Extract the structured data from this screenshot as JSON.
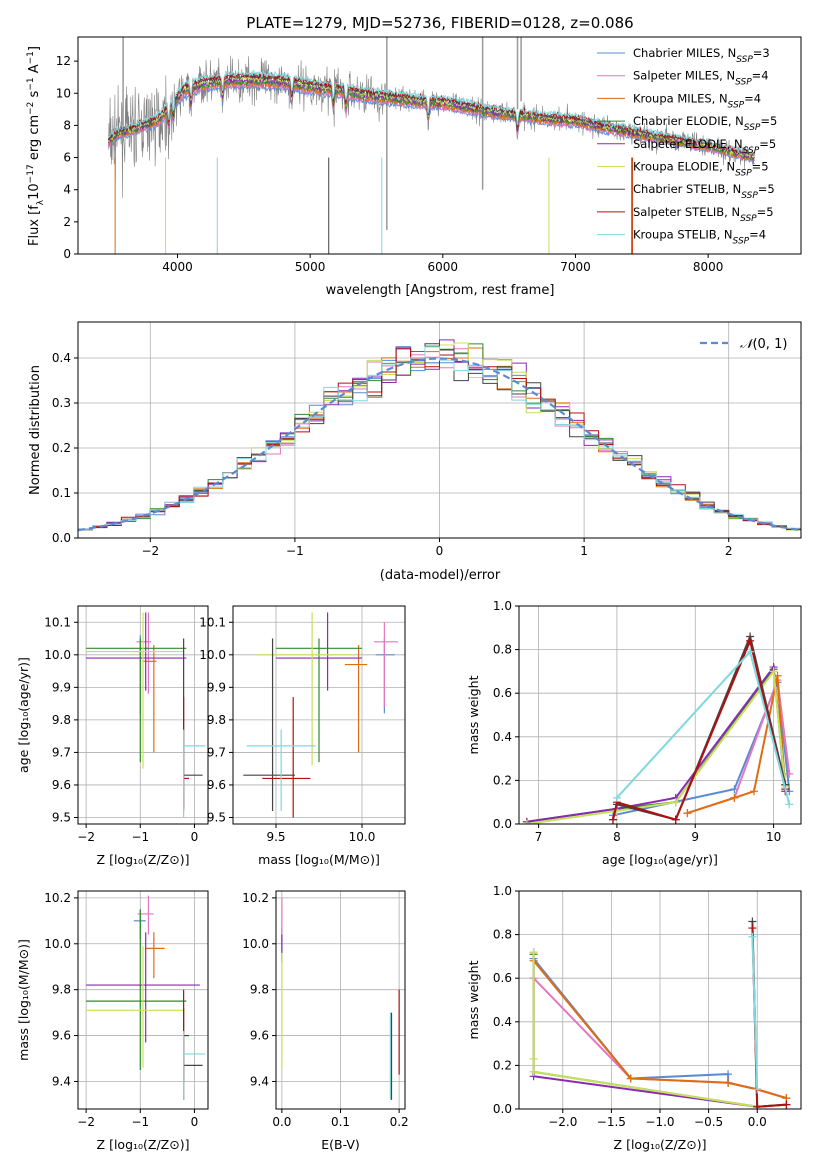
{
  "figure_title": "PLATE=1279, MJD=52736, FIBERID=0128, z=0.086",
  "models": [
    {
      "name": "Chabrier MILES",
      "nssp": "3",
      "color": "#5b8bd0"
    },
    {
      "name": "Salpeter MILES",
      "nssp": "4",
      "color": "#e377c2"
    },
    {
      "name": "Kroupa MILES",
      "nssp": "4",
      "color": "#e06c10"
    },
    {
      "name": "Chabrier ELODIE",
      "nssp": "5",
      "color": "#2f8a2f"
    },
    {
      "name": "Salpeter ELODIE",
      "nssp": "5",
      "color": "#8a2ab3"
    },
    {
      "name": "Kroupa ELODIE",
      "nssp": "5",
      "color": "#c8e05a"
    },
    {
      "name": "Chabrier STELIB",
      "nssp": "5",
      "color": "#444444"
    },
    {
      "name": "Salpeter STELIB",
      "nssp": "5",
      "color": "#b01010"
    },
    {
      "name": "Kroupa STELIB",
      "nssp": "4",
      "color": "#7fd8e0"
    }
  ],
  "chart_data": [
    {
      "id": "spectrum",
      "type": "line",
      "title": "PLATE=1279, MJD=52736, FIBERID=0128, z=0.086",
      "xlabel": "wavelength [Angstrom, rest frame]",
      "ylabel": "Flux [f_λ 10^-17 erg cm^-2 s^-1 A^-1]",
      "xlim": [
        3250,
        8700
      ],
      "ylim": [
        0,
        13.5
      ],
      "xticks": [
        4000,
        5000,
        6000,
        7000,
        8000
      ],
      "yticks": [
        0,
        2,
        4,
        6,
        8,
        10,
        12
      ],
      "grid": false,
      "legend": "top-right",
      "data_color": "#808080",
      "continuum": {
        "x": [
          3480,
          3550,
          3650,
          3750,
          3850,
          3950,
          4050,
          4200,
          4400,
          4600,
          4800,
          5000,
          5200,
          5400,
          5600,
          5800,
          6000,
          6200,
          6400,
          6600,
          6800,
          7000,
          7200,
          7400,
          7600,
          7800,
          8000,
          8200,
          8350
        ],
        "y": [
          7.0,
          7.5,
          7.7,
          8.0,
          8.3,
          9.2,
          10.2,
          10.6,
          10.8,
          10.8,
          10.7,
          10.4,
          10.2,
          9.9,
          9.7,
          9.5,
          9.4,
          9.1,
          8.8,
          8.6,
          8.4,
          8.3,
          7.9,
          7.6,
          7.3,
          7.0,
          6.7,
          6.3,
          6.0
        ]
      },
      "absorption_lines": [
        3934,
        3969,
        4102,
        4340,
        4861,
        5175,
        5270,
        5890,
        6563
      ]
    },
    {
      "id": "residuals",
      "type": "histogram",
      "xlabel": "(data-model)/error",
      "ylabel": "Normed distribution",
      "xlim": [
        -2.5,
        2.5
      ],
      "ylim": [
        0,
        0.48
      ],
      "xticks": [
        -2,
        -1,
        0,
        1,
        2
      ],
      "yticks": [
        0.0,
        0.1,
        0.2,
        0.3,
        0.4
      ],
      "grid": true,
      "legend": "top-right",
      "legend_label": "N(0,1)",
      "reference_curve": "gaussian, mean 0, sigma 1",
      "bin_width": 0.1
    },
    {
      "id": "age-vs-Z",
      "type": "errorbar",
      "xlabel": "Z [log10(Z/Z⊙)]",
      "ylabel": "age [log10(age/yr)]",
      "xlim": [
        -2.15,
        0.25
      ],
      "ylim": [
        9.48,
        10.15
      ],
      "xticks": [
        -2,
        -1,
        0
      ],
      "yticks": [
        9.5,
        9.6,
        9.7,
        9.8,
        9.9,
        10.0,
        10.1
      ],
      "grid": true,
      "points": [
        {
          "x": -1.0,
          "xerr": [
            0.1,
            0.1
          ],
          "y": 10.01,
          "yerr": [
            0.19,
            0.05
          ],
          "color": "#5b8bd0"
        },
        {
          "x": -0.85,
          "xerr": [
            0.22,
            0.05
          ],
          "y": 10.04,
          "yerr": [
            0.16,
            0.09
          ],
          "color": "#e377c2"
        },
        {
          "x": -0.75,
          "xerr": [
            0.2,
            0.05
          ],
          "y": 9.98,
          "yerr": [
            0.28,
            0.05
          ],
          "color": "#e06c10"
        },
        {
          "x": -1.0,
          "xerr": [
            1.0,
            0.85
          ],
          "y": 10.02,
          "yerr": [
            0.35,
            0.03
          ],
          "color": "#2f8a2f"
        },
        {
          "x": -0.9,
          "xerr": [
            1.1,
            0.75
          ],
          "y": 9.99,
          "yerr": [
            0.1,
            0.14
          ],
          "color": "#8a2ab3"
        },
        {
          "x": -0.95,
          "xerr": [
            1.05,
            0.75
          ],
          "y": 10.01,
          "yerr": [
            0.36,
            0.12
          ],
          "color": "#c8e05a"
        },
        {
          "x": -0.2,
          "xerr": [
            0.0,
            0.35
          ],
          "y": 9.63,
          "yerr": [
            0.1,
            0.42
          ],
          "color": "#444444"
        },
        {
          "x": -0.2,
          "xerr": [
            0.0,
            0.1
          ],
          "y": 9.62,
          "yerr": [
            0.1,
            0.25
          ],
          "color": "#b01010"
        },
        {
          "x": -0.2,
          "xerr": [
            0.0,
            0.4
          ],
          "y": 9.72,
          "yerr": [
            0.22,
            0.05
          ],
          "color": "#7fd8e0"
        }
      ]
    },
    {
      "id": "age-vs-mass",
      "type": "errorbar",
      "xlabel": "mass [log10(M/M⊙)]",
      "ylabel": "",
      "xlim": [
        9.25,
        10.25
      ],
      "ylim": [
        9.48,
        10.15
      ],
      "xticks": [
        9.5,
        10.0
      ],
      "yticks": [
        9.5,
        9.6,
        9.7,
        9.8,
        9.9,
        10.0,
        10.1
      ],
      "grid": true,
      "points": [
        {
          "x": 10.13,
          "xerr": [
            0.05,
            0.06
          ],
          "y": 10.0,
          "yerr": [
            0.18,
            0.05
          ],
          "color": "#5b8bd0"
        },
        {
          "x": 10.13,
          "xerr": [
            0.06,
            0.08
          ],
          "y": 10.04,
          "yerr": [
            0.2,
            0.06
          ],
          "color": "#e377c2"
        },
        {
          "x": 9.98,
          "xerr": [
            0.08,
            0.05
          ],
          "y": 9.97,
          "yerr": [
            0.27,
            0.06
          ],
          "color": "#e06c10"
        },
        {
          "x": 9.75,
          "xerr": [
            0.25,
            0.25
          ],
          "y": 10.02,
          "yerr": [
            0.35,
            0.03
          ],
          "color": "#2f8a2f"
        },
        {
          "x": 9.8,
          "xerr": [
            0.3,
            0.2
          ],
          "y": 9.99,
          "yerr": [
            0.1,
            0.14
          ],
          "color": "#8a2ab3"
        },
        {
          "x": 9.71,
          "xerr": [
            0.32,
            0.25
          ],
          "y": 10.0,
          "yerr": [
            0.34,
            0.13
          ],
          "color": "#c8e05a"
        },
        {
          "x": 9.48,
          "xerr": [
            0.17,
            0.13
          ],
          "y": 9.63,
          "yerr": [
            0.11,
            0.42
          ],
          "color": "#444444"
        },
        {
          "x": 9.6,
          "xerr": [
            0.18,
            0.1
          ],
          "y": 9.62,
          "yerr": [
            0.12,
            0.25
          ],
          "color": "#b01010"
        },
        {
          "x": 9.53,
          "xerr": [
            0.2,
            0.2
          ],
          "y": 9.72,
          "yerr": [
            0.2,
            0.05
          ],
          "color": "#7fd8e0"
        }
      ]
    },
    {
      "id": "massweight-vs-age",
      "type": "line",
      "xlabel": "age [log10(age/yr)]",
      "ylabel": "mass weight",
      "xlim": [
        6.75,
        10.35
      ],
      "ylim": [
        0,
        1.0
      ],
      "xticks": [
        7,
        8,
        9,
        10
      ],
      "yticks": [
        0.0,
        0.2,
        0.4,
        0.6,
        0.8,
        1.0
      ],
      "grid": true,
      "series": [
        {
          "color": "#5b8bd0",
          "x": [
            7.95,
            9.5,
            10.05,
            10.2
          ],
          "y": [
            0.04,
            0.16,
            0.65,
            0.15
          ]
        },
        {
          "color": "#e377c2",
          "x": [
            8.9,
            9.5,
            10.05,
            10.2
          ],
          "y": [
            0.05,
            0.12,
            0.66,
            0.23
          ]
        },
        {
          "color": "#e06c10",
          "x": [
            8.9,
            9.5,
            9.75,
            10.05,
            10.15
          ],
          "y": [
            0.05,
            0.12,
            0.15,
            0.68,
            0.15
          ]
        },
        {
          "color": "#2f8a2f",
          "x": [
            6.85,
            8.0,
            8.75,
            10.0,
            10.15
          ],
          "y": [
            0.01,
            0.07,
            0.1,
            0.71,
            0.18
          ]
        },
        {
          "color": "#8a2ab3",
          "x": [
            6.85,
            8.0,
            8.75,
            10.0,
            10.15
          ],
          "y": [
            0.01,
            0.07,
            0.12,
            0.72,
            0.15
          ]
        },
        {
          "color": "#c8e05a",
          "x": [
            6.85,
            8.0,
            8.75,
            10.0,
            10.15
          ],
          "y": [
            0.0,
            0.06,
            0.1,
            0.7,
            0.17
          ]
        },
        {
          "color": "#444444",
          "x": [
            7.95,
            8.0,
            8.75,
            9.7,
            10.15
          ],
          "y": [
            0.02,
            0.09,
            0.02,
            0.86,
            0.18
          ]
        },
        {
          "color": "#b01010",
          "x": [
            7.95,
            8.0,
            8.75,
            9.7,
            10.15
          ],
          "y": [
            0.02,
            0.1,
            0.02,
            0.84,
            0.16
          ]
        },
        {
          "color": "#7fd8e0",
          "x": [
            8.0,
            9.7,
            10.2
          ],
          "y": [
            0.12,
            0.79,
            0.09
          ]
        }
      ]
    },
    {
      "id": "mass-vs-Z",
      "type": "errorbar",
      "xlabel": "Z [log10(Z/Z⊙)]",
      "ylabel": "mass [log10(M/M⊙)]",
      "xlim": [
        -2.15,
        0.25
      ],
      "ylim": [
        9.28,
        10.23
      ],
      "xticks": [
        -2,
        -1,
        0
      ],
      "yticks": [
        9.4,
        9.6,
        9.8,
        10.0,
        10.2
      ],
      "grid": true,
      "points": [
        {
          "x": -1.0,
          "xerr": [
            0.12,
            0.1
          ],
          "y": 10.1,
          "yerr": [
            0.08,
            0.05
          ],
          "color": "#5b8bd0"
        },
        {
          "x": -0.85,
          "xerr": [
            0.2,
            0.1
          ],
          "y": 10.13,
          "yerr": [
            0.09,
            0.08
          ],
          "color": "#e377c2"
        },
        {
          "x": -0.75,
          "xerr": [
            0.15,
            0.2
          ],
          "y": 9.98,
          "yerr": [
            0.13,
            0.07
          ],
          "color": "#e06c10"
        },
        {
          "x": -1.0,
          "xerr": [
            1.0,
            0.85
          ],
          "y": 9.75,
          "yerr": [
            0.3,
            0.4
          ],
          "color": "#2f8a2f"
        },
        {
          "x": -0.9,
          "xerr": [
            1.1,
            1.0
          ],
          "y": 9.82,
          "yerr": [
            0.25,
            0.23
          ],
          "color": "#8a2ab3"
        },
        {
          "x": -0.95,
          "xerr": [
            1.05,
            0.75
          ],
          "y": 9.71,
          "yerr": [
            0.25,
            0.28
          ],
          "color": "#c8e05a"
        },
        {
          "x": -0.2,
          "xerr": [
            0.0,
            0.35
          ],
          "y": 9.47,
          "yerr": [
            0.15,
            0.25
          ],
          "color": "#444444"
        },
        {
          "x": -0.2,
          "xerr": [
            0.0,
            0.1
          ],
          "y": 9.6,
          "yerr": [
            0.2,
            0.2
          ],
          "color": "#b01010"
        },
        {
          "x": -0.2,
          "xerr": [
            0.0,
            0.4
          ],
          "y": 9.52,
          "yerr": [
            0.2,
            0.1
          ],
          "color": "#7fd8e0"
        }
      ]
    },
    {
      "id": "mass-vs-EBV",
      "type": "errorbar",
      "xlabel": "E(B-V)",
      "ylabel": "",
      "xlim": [
        -0.01,
        0.21
      ],
      "ylim": [
        9.28,
        10.23
      ],
      "xticks": [
        0.0,
        0.1,
        0.2
      ],
      "yticks": [
        9.4,
        9.6,
        9.8,
        10.0,
        10.2
      ],
      "grid": true,
      "points": [
        {
          "x": 0.0,
          "xerr": [
            0,
            0
          ],
          "y": 10.02,
          "yerr": [
            0.05,
            0.05
          ],
          "color": "#5b8bd0"
        },
        {
          "x": 0.0,
          "xerr": [
            0,
            0
          ],
          "y": 10.12,
          "yerr": [
            0.08,
            0.08
          ],
          "color": "#e377c2"
        },
        {
          "x": 0.0,
          "xerr": [
            0,
            0
          ],
          "y": 9.98,
          "yerr": [
            0.06,
            0.06
          ],
          "color": "#8a2ab3"
        },
        {
          "x": 0.0,
          "xerr": [
            0,
            0
          ],
          "y": 9.71,
          "yerr": [
            0.25,
            0.25
          ],
          "color": "#c8e05a"
        },
        {
          "x": 0.185,
          "xerr": [
            0,
            0
          ],
          "y": 9.52,
          "yerr": [
            0.2,
            0.18
          ],
          "color": "#7fd8e0"
        },
        {
          "x": 0.187,
          "xerr": [
            0,
            0
          ],
          "y": 9.5,
          "yerr": [
            0.18,
            0.2
          ],
          "color": "#444444"
        },
        {
          "x": 0.2,
          "xerr": [
            0,
            0
          ],
          "y": 9.6,
          "yerr": [
            0.17,
            0.2
          ],
          "color": "#b01010"
        }
      ]
    },
    {
      "id": "massweight-vs-Z",
      "type": "line",
      "xlabel": "Z [log10(Z/Z⊙)]",
      "ylabel": "mass weight",
      "xlim": [
        -2.45,
        0.45
      ],
      "ylim": [
        0,
        1.0
      ],
      "xticks": [
        -2.0,
        -1.5,
        -1.0,
        -0.5,
        0.0
      ],
      "yticks": [
        0.0,
        0.2,
        0.4,
        0.6,
        0.8,
        1.0
      ],
      "grid": true,
      "series": [
        {
          "color": "#5b8bd0",
          "x": [
            -2.3,
            -1.3,
            -0.3,
            -0.3,
            0.0,
            0.3
          ],
          "y": [
            0.69,
            0.14,
            0.16,
            0.12,
            0.09,
            0.05
          ]
        },
        {
          "color": "#e377c2",
          "x": [
            -2.3,
            -1.3,
            -0.3,
            0.0,
            0.3
          ],
          "y": [
            0.6,
            0.14,
            0.12,
            0.09,
            0.05
          ]
        },
        {
          "color": "#e06c10",
          "x": [
            -2.3,
            -1.3,
            -0.3,
            0.0,
            0.3
          ],
          "y": [
            0.68,
            0.14,
            0.12,
            0.09,
            0.05
          ]
        },
        {
          "color": "#2f8a2f",
          "x": [
            -2.3,
            -2.3,
            0.0
          ],
          "y": [
            0.71,
            0.17,
            0.01
          ]
        },
        {
          "color": "#8a2ab3",
          "x": [
            -2.3,
            -2.3,
            0.0
          ],
          "y": [
            0.72,
            0.15,
            0.01
          ]
        },
        {
          "color": "#c8e05a",
          "x": [
            -2.3,
            -2.3,
            -2.3,
            0.0
          ],
          "y": [
            0.72,
            0.23,
            0.17,
            0.01
          ]
        },
        {
          "color": "#444444",
          "x": [
            -0.05,
            0.0,
            0.3
          ],
          "y": [
            0.86,
            0.01,
            0.02
          ]
        },
        {
          "color": "#b01010",
          "x": [
            -0.05,
            0.0,
            0.3
          ],
          "y": [
            0.83,
            0.01,
            0.02
          ]
        },
        {
          "color": "#7fd8e0",
          "x": [
            -0.05,
            0.0
          ],
          "y": [
            0.79,
            0.09
          ]
        }
      ]
    }
  ]
}
